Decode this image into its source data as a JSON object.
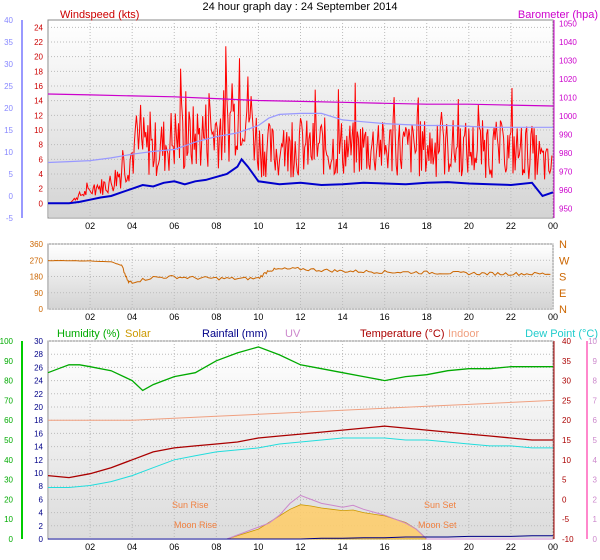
{
  "page": {
    "title": "24 hour graph day : 24 September 2014"
  },
  "colors": {
    "wind": "#ff0000",
    "gust_baseline": "#0000cc",
    "wind_axis_left": "#9999ff",
    "barometer": "#cc00cc",
    "barometer_axis": "#cc00cc",
    "direction": "#cc6600",
    "humidity": "#00aa00",
    "solar": "#cc9900",
    "rain": "#000088",
    "uv": "#cc88cc",
    "temperature": "#aa0000",
    "indoor": "#f0a080",
    "dewpoint": "#22dddd",
    "solar_fill": "#ffcc66",
    "sun_text": "#f08040"
  },
  "chart_data": [
    {
      "type": "line",
      "panel": "wind",
      "labels": {
        "windspeed": "Windspeed (kts)",
        "barometer": "Barometer (hpa)"
      },
      "x_ticks": [
        "02",
        "04",
        "06",
        "08",
        "10",
        "12",
        "14",
        "16",
        "18",
        "20",
        "22",
        "00"
      ],
      "x_range_hours": [
        0,
        24
      ],
      "y_left_outer": {
        "range": [
          -5,
          40
        ],
        "ticks": [
          "-5",
          "0",
          "5",
          "10",
          "15",
          "20",
          "25",
          "30",
          "35",
          "40"
        ]
      },
      "y_left_inner": {
        "range": [
          -2,
          25
        ],
        "ticks": [
          "0",
          "2",
          "4",
          "6",
          "8",
          "10",
          "12",
          "14",
          "16",
          "18",
          "20",
          "22",
          "24"
        ]
      },
      "y_right": {
        "range": [
          945,
          1052
        ],
        "ticks": [
          "950",
          "960",
          "970",
          "980",
          "990",
          "1000",
          "1010",
          "1020",
          "1030",
          "1040",
          "1050"
        ]
      },
      "series": [
        {
          "name_key": "windspeed",
          "color": "#ff0000",
          "hours": [
            0,
            0.5,
            1,
            1.5,
            2,
            2.5,
            3,
            3.5,
            4,
            4.5,
            5,
            5.5,
            6,
            6.5,
            7,
            7.5,
            8,
            8.5,
            9,
            9.5,
            10,
            10.5,
            11,
            11.5,
            12,
            12.5,
            13,
            13.5,
            14,
            14.5,
            15,
            15.5,
            16,
            16.5,
            17,
            17.5,
            18,
            18.5,
            19,
            19.5,
            20,
            20.5,
            21,
            21.5,
            22,
            22.5,
            23,
            23.5,
            24
          ],
          "values": [
            0,
            0,
            0,
            1,
            1.5,
            2,
            2.5,
            4,
            6,
            7,
            6.5,
            7,
            8,
            7.5,
            8,
            8.5,
            9,
            9.5,
            11,
            12,
            7,
            6.5,
            6,
            6.5,
            7,
            6.5,
            7,
            6.5,
            6.8,
            6.5,
            7,
            6.8,
            6.5,
            7,
            6.7,
            6.5,
            6.8,
            6.5,
            6.7,
            6.8,
            6.5,
            6.7,
            6.5,
            6.6,
            6.5,
            6.4,
            6.3,
            5,
            4
          ]
        },
        {
          "name_key": "windspeed",
          "color": "#0000cc",
          "hours": [
            0,
            1,
            1.5,
            2,
            2.5,
            3,
            3.5,
            4,
            4.5,
            5,
            5.5,
            6,
            6.5,
            7,
            7.5,
            8,
            8.5,
            9,
            9.2,
            9.5,
            10,
            10.5,
            11,
            12,
            13,
            14,
            15,
            16,
            17,
            18,
            19,
            20,
            21,
            22,
            23,
            23.5,
            24
          ],
          "values": [
            0,
            0,
            0.2,
            0.5,
            0.8,
            1,
            1.5,
            2,
            2.5,
            2.3,
            2.8,
            3,
            2.6,
            3,
            3.2,
            3.6,
            4,
            5,
            6,
            5,
            3,
            2.8,
            2.6,
            2.8,
            2.5,
            2.6,
            2.8,
            2.7,
            2.6,
            2.8,
            2.9,
            2.7,
            2.6,
            2.5,
            2.8,
            1,
            1.5
          ]
        },
        {
          "name_key": "barometer",
          "color": "#cc00cc",
          "hours": [
            0,
            2,
            4,
            6,
            8,
            10,
            12,
            14,
            16,
            18,
            20,
            22,
            24
          ],
          "values": [
            1012,
            1011.5,
            1011,
            1010.5,
            1009.5,
            1008.5,
            1008,
            1007.5,
            1007,
            1006.5,
            1006.5,
            1006,
            1005.5
          ]
        },
        {
          "name_key": "barometer",
          "color": "#9999ff",
          "hours": [
            0,
            1,
            2,
            3,
            4,
            5,
            6,
            6.5,
            7,
            8,
            9,
            10,
            10.5,
            11,
            12,
            13,
            14,
            15,
            16,
            17,
            18,
            19,
            20,
            21,
            22,
            23,
            24
          ],
          "values": [
            975,
            975.5,
            976,
            977.5,
            979.5,
            981,
            982,
            984,
            986,
            989,
            991,
            995,
            999,
            1001,
            1001.5,
            1001.5,
            998,
            997,
            996,
            995.5,
            995,
            995,
            994.5,
            994,
            994,
            994,
            994
          ]
        }
      ]
    },
    {
      "type": "line",
      "panel": "direction",
      "x_ticks": [
        "02",
        "04",
        "06",
        "08",
        "10",
        "12",
        "14",
        "16",
        "18",
        "20",
        "22",
        "00"
      ],
      "y_left": {
        "range": [
          0,
          360
        ],
        "ticks": [
          "0",
          "90",
          "180",
          "270",
          "360"
        ]
      },
      "y_right_labels": [
        "N",
        "W",
        "S",
        "E",
        "N"
      ],
      "series": [
        {
          "color": "#cc6600",
          "hours": [
            0,
            1,
            2,
            3,
            3.5,
            3.8,
            4,
            5,
            6,
            7,
            8,
            9,
            10,
            10.5,
            11,
            12,
            13,
            14,
            15,
            16,
            17,
            18,
            19,
            20,
            21,
            22,
            23,
            24
          ],
          "values": [
            268,
            268,
            266,
            262,
            240,
            150,
            150,
            175,
            178,
            172,
            170,
            168,
            170,
            215,
            220,
            222,
            215,
            210,
            208,
            205,
            204,
            202,
            200,
            198,
            196,
            195,
            195,
            195
          ]
        }
      ]
    },
    {
      "type": "line",
      "panel": "weather",
      "labels": {
        "humidity": "Humidity (%)",
        "solar": "Solar",
        "rainfall": "Rainfall (mm)",
        "uv": "UV",
        "temperature": "Temperature (°C)",
        "indoor": "Indoor",
        "dewpoint": "Dew Point (°C)",
        "sun_rise": "Sun Rise",
        "moon_rise": "Moon Rise",
        "sun_set": "Sun Set",
        "moon_set": "Moon Set"
      },
      "x_ticks": [
        "02",
        "04",
        "06",
        "08",
        "10",
        "12",
        "14",
        "16",
        "18",
        "20",
        "22",
        "00"
      ],
      "y_humidity": {
        "range": [
          0,
          100
        ],
        "ticks": [
          "0",
          "10",
          "20",
          "30",
          "40",
          "50",
          "60",
          "70",
          "80",
          "90",
          "100"
        ]
      },
      "y_rain": {
        "range": [
          0,
          30
        ],
        "ticks": [
          "0",
          "2",
          "4",
          "6",
          "8",
          "10",
          "12",
          "14",
          "16",
          "18",
          "20",
          "22",
          "24",
          "26",
          "28",
          "30"
        ]
      },
      "y_temp": {
        "range": [
          -10,
          40
        ],
        "ticks": [
          "-10",
          "-5",
          "0",
          "5",
          "10",
          "15",
          "20",
          "25",
          "30",
          "35",
          "40"
        ]
      },
      "y_uv": {
        "range": [
          0,
          10
        ],
        "ticks": [
          "0",
          "1",
          "2",
          "3",
          "4",
          "5",
          "6",
          "7",
          "8",
          "9",
          "10"
        ]
      },
      "series": [
        {
          "name_key": "humidity",
          "color": "#00aa00",
          "hours": [
            0,
            0.5,
            1,
            1.5,
            2,
            3,
            4,
            4.5,
            5,
            5.5,
            6,
            7,
            8,
            9,
            10,
            11,
            12,
            13,
            14,
            15,
            16,
            17,
            18,
            19,
            20,
            21,
            22,
            23,
            24
          ],
          "values": [
            84,
            86,
            88,
            88,
            87,
            85,
            80,
            75,
            78,
            80,
            82,
            84,
            90,
            94,
            97,
            93,
            88,
            86,
            84,
            82,
            80,
            82,
            83,
            85,
            86,
            86,
            87,
            87,
            87
          ]
        },
        {
          "name_key": "temperature",
          "color": "#aa0000",
          "hours": [
            0,
            1,
            2,
            3,
            4,
            5,
            6,
            7,
            8,
            9,
            10,
            11,
            12,
            13,
            14,
            15,
            16,
            17,
            18,
            19,
            20,
            21,
            22,
            23,
            24
          ],
          "values": [
            6,
            5.5,
            6.5,
            8,
            10,
            12,
            13,
            13.5,
            14,
            14.5,
            15.5,
            16,
            16.5,
            17,
            17.5,
            18,
            18.5,
            18,
            17.5,
            17,
            16.5,
            16,
            15.5,
            15,
            15
          ]
        },
        {
          "name_key": "indoor",
          "color": "#f0a080",
          "hours": [
            0,
            2,
            4,
            6,
            8,
            10,
            12,
            14,
            16,
            18,
            20,
            22,
            24
          ],
          "values": [
            20,
            20,
            20,
            20.5,
            21,
            21.5,
            22,
            22.5,
            23,
            23.5,
            24,
            24.5,
            25
          ]
        },
        {
          "name_key": "dewpoint",
          "color": "#22dddd",
          "hours": [
            0,
            1,
            2,
            3,
            4,
            5,
            6,
            7,
            8,
            9,
            10,
            11,
            12,
            13,
            14,
            15,
            16,
            17,
            18,
            19,
            20,
            21,
            22,
            23,
            24
          ],
          "values": [
            3,
            3,
            3.5,
            4.5,
            6,
            8,
            10,
            11,
            12,
            12.5,
            13,
            14,
            14.5,
            15,
            15.5,
            15.5,
            15.5,
            15,
            15,
            14.5,
            14,
            13.5,
            13.5,
            13,
            13
          ]
        },
        {
          "name_key": "uv",
          "color": "#cc88cc",
          "hours": [
            0,
            8.5,
            9,
            10,
            10.5,
            11,
            11.5,
            12,
            12.5,
            13,
            13.5,
            14,
            14.5,
            15,
            16,
            17,
            17.5,
            18,
            24
          ],
          "values": [
            0,
            0,
            0.2,
            0.6,
            0.8,
            1.2,
            1.8,
            2.2,
            2.0,
            1.8,
            1.7,
            1.6,
            1.7,
            1.5,
            1.2,
            0.8,
            0.5,
            0,
            0
          ]
        },
        {
          "name_key": "solar",
          "color": "#cc9900",
          "hours": [
            0,
            8.5,
            9,
            10,
            10.5,
            11,
            11.5,
            12,
            12.5,
            13,
            13.5,
            14,
            14.5,
            15,
            16,
            17,
            17.5,
            18,
            24
          ],
          "values": [
            0,
            0,
            0.5,
            1.5,
            2.5,
            3.5,
            4.5,
            5.2,
            5.0,
            4.7,
            4.5,
            4.3,
            4.4,
            4.0,
            3.5,
            2.5,
            1.5,
            0,
            0
          ]
        },
        {
          "name_key": "rainfall",
          "color": "#000088",
          "hours": [
            0,
            12,
            13,
            14,
            15,
            16,
            17,
            18,
            19,
            20,
            21,
            22,
            23,
            24
          ],
          "values": [
            0,
            0,
            0.1,
            0.1,
            0.2,
            0.2,
            0.3,
            0.3,
            0.3,
            0.4,
            0.4,
            0.4,
            0.5,
            0.5
          ]
        }
      ]
    }
  ]
}
